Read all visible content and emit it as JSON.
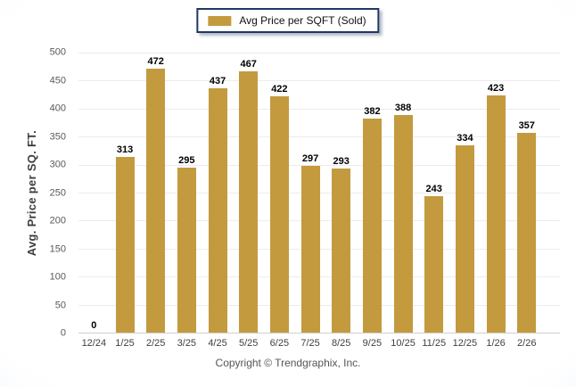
{
  "legend": {
    "label": "Avg Price per SQFT (Sold)"
  },
  "y_axis": {
    "title": "Avg. Price per SQ. FT."
  },
  "footer": {
    "copyright": "Copyright © Trendgraphix, Inc."
  },
  "colors": {
    "bar": "#c49a3f",
    "legend_border": "#1f3864",
    "gridline": "#ececec",
    "axis_line": "#d0d0d0",
    "y_tick_label": "#595959",
    "x_tick_label": "#404040",
    "value_label": "#000000",
    "y_title": "#3d3d3d",
    "copyright": "#555555"
  },
  "chart_data": {
    "type": "bar",
    "title": "",
    "series_name": "Avg Price per SQFT (Sold)",
    "categories": [
      "12/24",
      "1/25",
      "2/25",
      "3/25",
      "4/25",
      "5/25",
      "6/25",
      "7/25",
      "8/25",
      "9/25",
      "10/25",
      "11/25",
      "12/25",
      "1/26",
      "2/26"
    ],
    "values": [
      0,
      313,
      472,
      295,
      437,
      467,
      422,
      297,
      293,
      382,
      388,
      243,
      334,
      423,
      357
    ],
    "xlabel": "",
    "ylabel": "Avg. Price per SQ. FT.",
    "ylim": [
      0,
      500
    ],
    "ytick_step": 50,
    "grid": true,
    "data_labels": true,
    "legend_position": "top-center"
  }
}
